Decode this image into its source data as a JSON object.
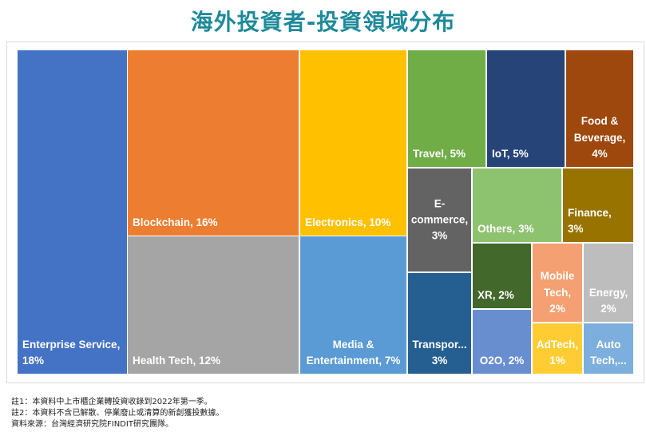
{
  "title": "海外投資者-投資領域分布",
  "notes": [
    "註1：本資料中上市櫃企業轉投資收錄到2022年第一季。",
    "註2：本資料不含已解散、停業廢止或清算的新創獲投數據。",
    "資料來源：台灣經濟研究院FINDIT研究團隊。"
  ],
  "chart_data": {
    "type": "treemap",
    "title": "海外投資者-投資領域分布",
    "tiles": [
      {
        "label": "Enterprise Service,\n18%",
        "name": "Enterprise Service",
        "value": 18,
        "color": "#4472C4"
      },
      {
        "label": "Blockchain, 16%",
        "name": "Blockchain",
        "value": 16,
        "color": "#ED7D31"
      },
      {
        "label": "Health Tech, 12%",
        "name": "Health Tech",
        "value": 12,
        "color": "#A5A5A5"
      },
      {
        "label": "Electronics, 10%",
        "name": "Electronics",
        "value": 10,
        "color": "#FFC000"
      },
      {
        "label": "Media &\nEntertainment, 7%",
        "name": "Media & Entertainment",
        "value": 7,
        "color": "#5B9BD5"
      },
      {
        "label": "Travel, 5%",
        "name": "Travel",
        "value": 5,
        "color": "#70AD47"
      },
      {
        "label": "IoT, 5%",
        "name": "IoT",
        "value": 5,
        "color": "#264478"
      },
      {
        "label": "Food &\nBeverage,\n4%",
        "name": "Food & Beverage",
        "value": 4,
        "color": "#9E480E"
      },
      {
        "label": "E-\ncommerce,\n3%",
        "name": "E-commerce",
        "value": 3,
        "color": "#636363"
      },
      {
        "label": "Transpor...\n3%",
        "name": "Transportation",
        "value": 3,
        "color": "#255E91"
      },
      {
        "label": "Others, 3%",
        "name": "Others",
        "value": 3,
        "color": "#8DC26F"
      },
      {
        "label": "Finance, 3%",
        "name": "Finance",
        "value": 3,
        "color": "#997300"
      },
      {
        "label": "XR, 2%",
        "name": "XR",
        "value": 2,
        "color": "#43682B"
      },
      {
        "label": "Mobile\nTech,\n2%",
        "name": "Mobile Tech",
        "value": 2,
        "color": "#F4A072"
      },
      {
        "label": "Energy,\n2%",
        "name": "Energy",
        "value": 2,
        "color": "#BDBDBD"
      },
      {
        "label": "O2O, 2%",
        "name": "O2O",
        "value": 2,
        "color": "#698ED0"
      },
      {
        "label": "AdTech,\n1%",
        "name": "AdTech",
        "value": 1,
        "color": "#FFCD33"
      },
      {
        "label": "Auto\nTech,...",
        "name": "Auto Tech",
        "value": 1,
        "color": "#7CAFDD"
      }
    ]
  }
}
